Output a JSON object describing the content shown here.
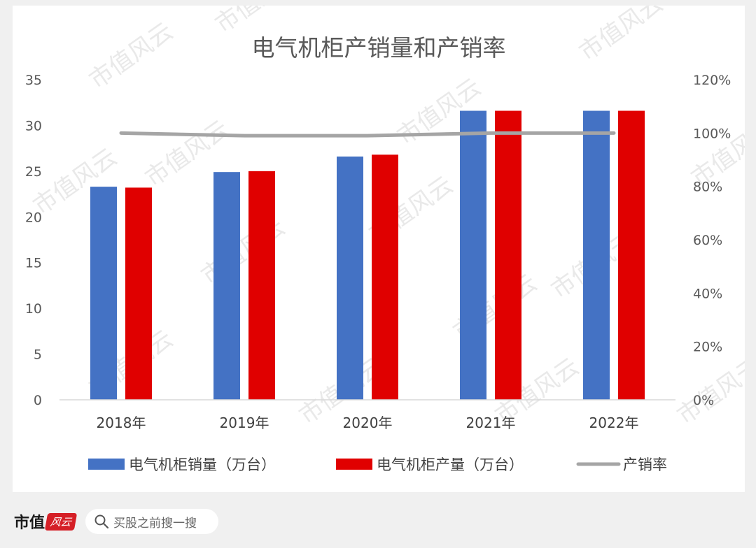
{
  "chart_data": {
    "type": "bar",
    "title": "电气机柜产销量和产销率",
    "categories": [
      "2018年",
      "2019年",
      "2020年",
      "2021年",
      "2022年"
    ],
    "series": [
      {
        "name": "电气机柜销量（万台）",
        "kind": "bar",
        "axis": "left",
        "color": "#4472c4",
        "values": [
          23.3,
          24.9,
          26.6,
          31.6,
          31.6
        ]
      },
      {
        "name": "电气机柜产量（万台）",
        "kind": "bar",
        "axis": "left",
        "color": "#e00000",
        "values": [
          23.2,
          25.0,
          26.8,
          31.6,
          31.6
        ]
      },
      {
        "name": "产销率",
        "kind": "line",
        "axis": "right",
        "color": "#a5a5a5",
        "values": [
          1.0,
          0.99,
          0.99,
          1.0,
          1.0
        ]
      }
    ],
    "ylim": [
      0,
      35
    ],
    "y_ticks": [
      "0",
      "5",
      "10",
      "15",
      "20",
      "25",
      "30",
      "35"
    ],
    "y2lim": [
      0,
      1.2
    ],
    "y2_ticks": [
      "0%",
      "20%",
      "40%",
      "60%",
      "80%",
      "100%",
      "120%"
    ],
    "grid": false,
    "legend_position": "bottom"
  },
  "watermark": {
    "text": "市值风云"
  },
  "footer": {
    "brand": "市值",
    "brand_logo": "风云",
    "search_icon": "search-icon",
    "search_placeholder": "买股之前搜一搜"
  }
}
